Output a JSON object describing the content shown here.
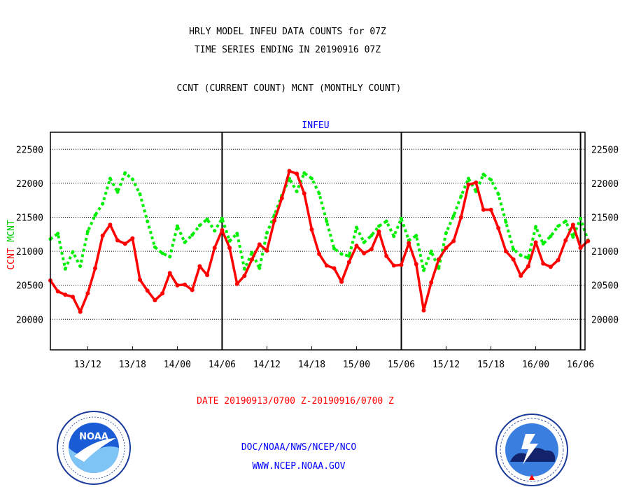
{
  "header": {
    "title_line1": "HRLY MODEL INFEU DATA COUNTS for 07Z",
    "title_line2": "TIME SERIES ENDING IN 20190916 07Z",
    "subtitle": "CCNT (CURRENT COUNT) MCNT (MONTHLY COUNT)"
  },
  "footer": {
    "date_range": "DATE 20190913/0700 Z-20190916/0700 Z",
    "org": "DOC/NOAA/NWS/NCEP/NCO",
    "url": "WWW.NCEP.NOAA.GOV"
  },
  "logos": {
    "left": {
      "text": "NOAA",
      "ring_text": "NATIONAL OCEANIC AND ATMOSPHERIC ADMINISTRATION · U.S. DEPARTMENT OF COMMERCE"
    },
    "right": {
      "ring_text": "NATIONAL WEATHER SERVICE"
    }
  },
  "colors": {
    "ccnt": "#ff0000",
    "mcnt": "#00ee00",
    "grid": "#000000",
    "title_blue": "#0000ff"
  },
  "chart_data": {
    "type": "line",
    "title": "INFEU",
    "ylabel_red": "CCNT",
    "ylabel_green": "MCNT",
    "ylim": [
      19550,
      22750
    ],
    "y_ticks": [
      20000,
      20500,
      21000,
      21500,
      22000,
      22500
    ],
    "y_tick_labels": [
      "20000",
      "20500",
      "21000",
      "21500",
      "22000",
      "22500"
    ],
    "x_ticks": [
      "13/12",
      "13/18",
      "14/00",
      "14/06",
      "14/12",
      "14/18",
      "15/00",
      "15/06",
      "15/12",
      "15/18",
      "16/00",
      "16/06"
    ],
    "x_tick_hours": [
      5,
      11,
      17,
      23,
      29,
      35,
      41,
      47,
      53,
      59,
      65,
      71
    ],
    "day_separators_hours": [
      23,
      47,
      71
    ],
    "x_range_hours": [
      0,
      71.6
    ],
    "grid": true,
    "series": [
      {
        "name": "CCNT",
        "style": "solid",
        "color": "#ff0000",
        "values": [
          20570,
          20410,
          20360,
          20330,
          20110,
          20380,
          20750,
          21230,
          21390,
          21160,
          21110,
          21190,
          20580,
          20420,
          20280,
          20380,
          20680,
          20500,
          20510,
          20430,
          20780,
          20650,
          21050,
          21310,
          21050,
          20520,
          20640,
          20880,
          21100,
          21010,
          21450,
          21780,
          22180,
          22140,
          21850,
          21320,
          20960,
          20790,
          20750,
          20550,
          20840,
          21080,
          20970,
          21030,
          21290,
          20930,
          20790,
          20800,
          21120,
          20810,
          20130,
          20540,
          20880,
          21050,
          21150,
          21500,
          21980,
          22010,
          21610,
          21610,
          21340,
          21000,
          20880,
          20640,
          20780,
          21130,
          20820,
          20770,
          20870,
          21160,
          21390,
          21050,
          21150
        ]
      },
      {
        "name": "MCNT",
        "style": "dotted",
        "color": "#00ee00",
        "values": [
          21180,
          21260,
          20740,
          20990,
          20780,
          21290,
          21530,
          21700,
          22070,
          21870,
          22150,
          22060,
          21840,
          21440,
          21060,
          20970,
          20920,
          21370,
          21130,
          21240,
          21380,
          21470,
          21300,
          21480,
          21150,
          21260,
          20740,
          20980,
          20750,
          21270,
          21530,
          21820,
          22070,
          21880,
          22150,
          22070,
          21850,
          21440,
          21040,
          20960,
          20930,
          21350,
          21130,
          21230,
          21370,
          21440,
          21220,
          21480,
          21160,
          21230,
          20720,
          21000,
          20750,
          21270,
          21520,
          21810,
          22070,
          21880,
          22130,
          22050,
          21840,
          21430,
          21030,
          20940,
          20900,
          21360,
          21110,
          21220,
          21370,
          21440,
          21210,
          21480,
          21160
        ]
      }
    ]
  }
}
